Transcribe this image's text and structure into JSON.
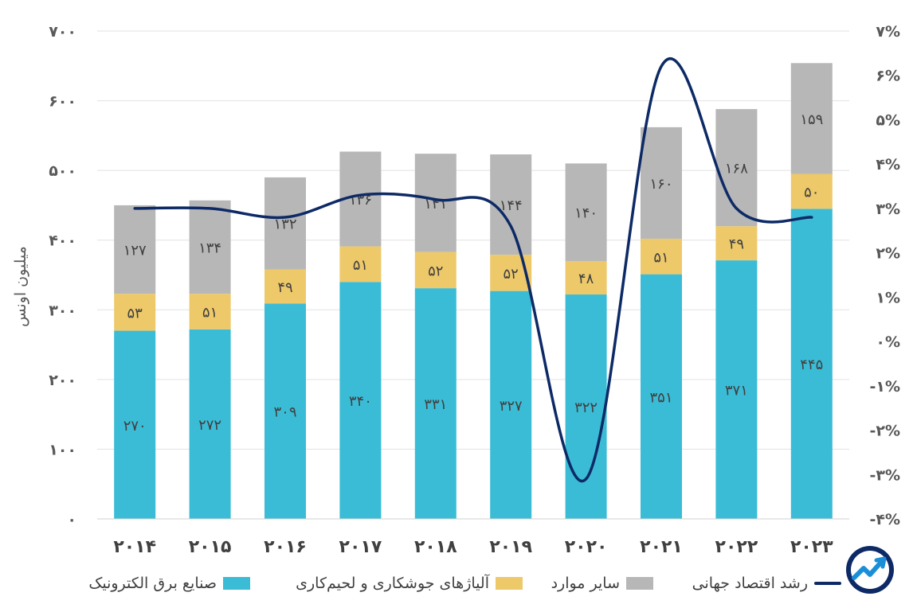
{
  "colors": {
    "electronics": "#3bbcd6",
    "alloys": "#edc96a",
    "other": "#b7b7b7",
    "growth_line": "#0d2a66",
    "grid": "#e2e2e2",
    "logo": "#1a8fd8"
  },
  "chart_data": {
    "type": "bar",
    "stacked": true,
    "categories": [
      "۲۰۱۴",
      "۲۰۱۵",
      "۲۰۱۶",
      "۲۰۱۷",
      "۲۰۱۸",
      "۲۰۱۹",
      "۲۰۲۰",
      "۲۰۲۱",
      "۲۰۲۲",
      "۲۰۲۳"
    ],
    "series": [
      {
        "name": "صنایع برق الکترونیک",
        "key": "electronics",
        "values": [
          270,
          272,
          309,
          340,
          331,
          327,
          322,
          351,
          371,
          445
        ],
        "labels": [
          "۲۷۰",
          "۲۷۲",
          "۳۰۹",
          "۳۴۰",
          "۳۳۱",
          "۳۲۷",
          "۳۲۲",
          "۳۵۱",
          "۳۷۱",
          "۴۴۵"
        ]
      },
      {
        "name": "آلیاژهای جوشکاری و لحیم‌کاری",
        "key": "alloys",
        "values": [
          53,
          51,
          49,
          51,
          52,
          52,
          48,
          51,
          49,
          50
        ],
        "labels": [
          "۵۳",
          "۵۱",
          "۴۹",
          "۵۱",
          "۵۲",
          "۵۲",
          "۴۸",
          "۵۱",
          "۴۹",
          "۵۰"
        ]
      },
      {
        "name": "سایر موارد",
        "key": "other",
        "values": [
          127,
          134,
          132,
          136,
          141,
          144,
          140,
          160,
          168,
          159
        ],
        "labels": [
          "۱۲۷",
          "۱۳۴",
          "۱۳۲",
          "۱۳۶",
          "۱۴۱",
          "۱۴۴",
          "۱۴۰",
          "۱۶۰",
          "۱۶۸",
          "۱۵۹"
        ]
      }
    ],
    "line_series": {
      "name": "رشد اقتصاد جهانی",
      "values": [
        3.0,
        3.0,
        2.8,
        3.3,
        3.2,
        2.6,
        -3.1,
        6.2,
        3.0,
        2.8
      ]
    },
    "ylabel": "میلیون اونس",
    "ylim": [
      0,
      700
    ],
    "y_ticks": [
      0,
      100,
      200,
      300,
      400,
      500,
      600,
      700
    ],
    "y_tick_labels": [
      "۰",
      "۱۰۰",
      "۲۰۰",
      "۳۰۰",
      "۴۰۰",
      "۵۰۰",
      "۶۰۰",
      "۷۰۰"
    ],
    "y2lim": [
      -4,
      7
    ],
    "y2_ticks": [
      -4,
      -3,
      -2,
      -1,
      0,
      1,
      2,
      3,
      4,
      5,
      6,
      7
    ],
    "y2_tick_labels": [
      "-۴%",
      "-۳%",
      "-۲%",
      "-۱%",
      "۰%",
      "۱%",
      "۲%",
      "۳%",
      "۴%",
      "۵%",
      "۶%",
      "۷%"
    ],
    "grid": true,
    "legend_position": "bottom"
  },
  "legend": {
    "electronics": "صنایع برق الکترونیک",
    "alloys": "آلیاژهای جوشکاری و لحیم‌کاری",
    "other": "سایر موارد",
    "growth": "رشد اقتصاد جهانی"
  },
  "logo_icon": "chart-trend-logo-icon"
}
